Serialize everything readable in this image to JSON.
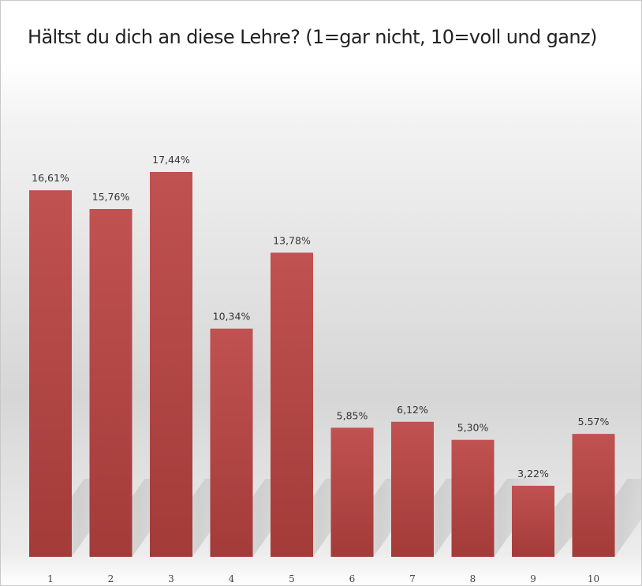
{
  "chart_data": {
    "type": "bar",
    "title": "Hältst du dich an diese Lehre? (1=gar nicht, 10=voll und ganz)",
    "categories": [
      "1",
      "2",
      "3",
      "4",
      "5",
      "6",
      "7",
      "8",
      "9",
      "10"
    ],
    "values": [
      16.61,
      15.76,
      17.44,
      10.34,
      13.78,
      5.85,
      6.12,
      5.3,
      3.22,
      5.57
    ],
    "labels": [
      "16,61%",
      "15,76%",
      "17,44%",
      "10,34%",
      "13,78%",
      "5,85%",
      "6,12%",
      "5,30%",
      "3,22%",
      "5.57%"
    ],
    "xlabel": "",
    "ylabel": "",
    "ylim": [
      0,
      17.44
    ],
    "grid": false,
    "bar_color": "#b94644"
  }
}
